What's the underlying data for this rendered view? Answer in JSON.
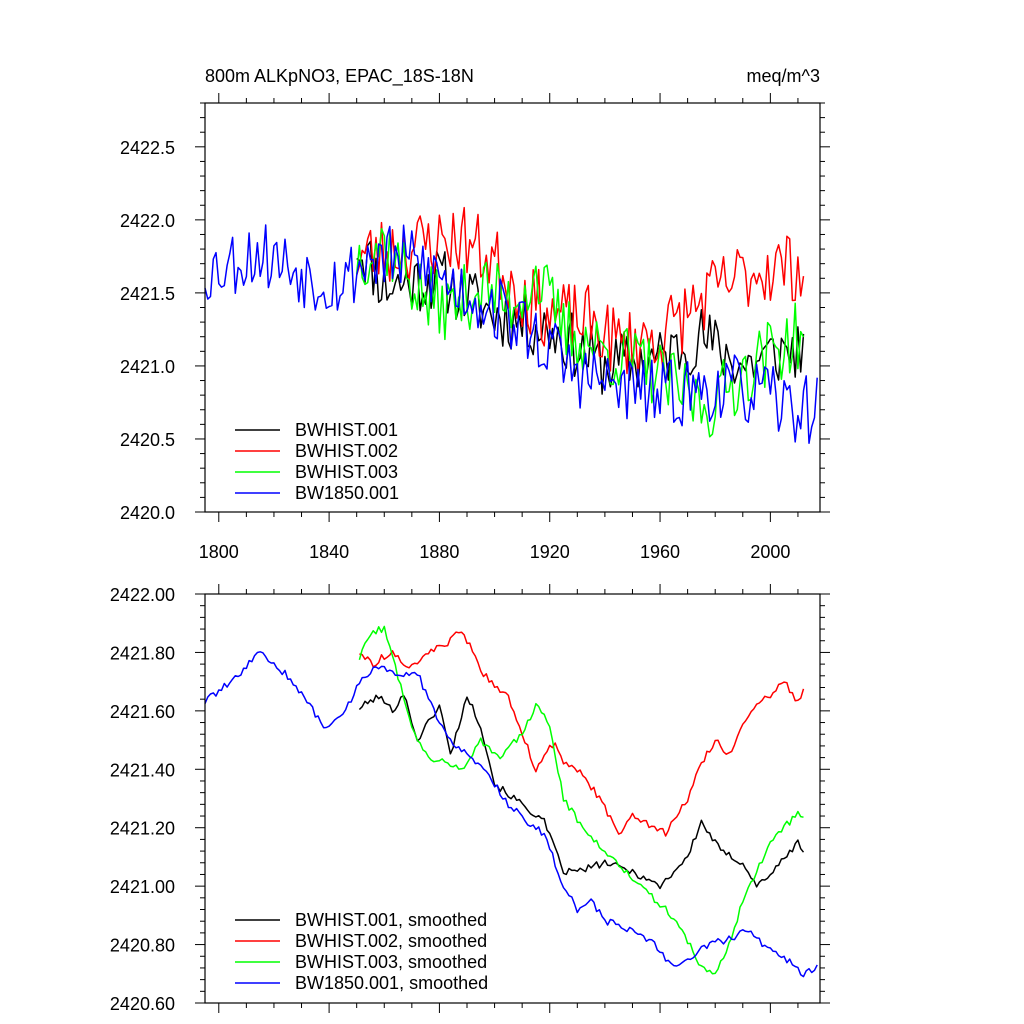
{
  "chart_data": [
    {
      "type": "line",
      "title_left": "800m ALKpNO3, EPAC_18S-18N",
      "title_right": "meq/m^3",
      "xlim": [
        1795,
        2018
      ],
      "ylim": [
        2420.0,
        2422.8
      ],
      "xticks": [
        1800,
        1840,
        1880,
        1920,
        1960,
        2000
      ],
      "xtick_labels": [
        "1800",
        "1840",
        "1880",
        "1920",
        "1960",
        "2000"
      ],
      "yticks": [
        2420.0,
        2420.5,
        2421.0,
        2421.5,
        2422.0,
        2422.5
      ],
      "ytick_labels": [
        "2420.0",
        "2420.5",
        "2421.0",
        "2421.5",
        "2422.0",
        "2422.5"
      ],
      "legend_position": "bottom-left",
      "series": [
        {
          "name": "BWHIST.001",
          "color": "#000000",
          "start": 1850,
          "anchors": [
            [
              1850,
              2421.85
            ],
            [
              1860,
              2421.55
            ],
            [
              1880,
              2421.6
            ],
            [
              1900,
              2421.35
            ],
            [
              1920,
              2421.25
            ],
            [
              1940,
              2421.0
            ],
            [
              1960,
              2421.05
            ],
            [
              1975,
              2421.2
            ],
            [
              1990,
              2421.0
            ],
            [
              2005,
              2421.1
            ],
            [
              2012,
              2421.12
            ]
          ],
          "noise": 0.22,
          "seed": 11
        },
        {
          "name": "BWHIST.002",
          "color": "#ff0000",
          "start": 1850,
          "anchors": [
            [
              1850,
              2421.75
            ],
            [
              1865,
              2421.8
            ],
            [
              1888,
              2421.88
            ],
            [
              1900,
              2421.72
            ],
            [
              1910,
              2421.5
            ],
            [
              1920,
              2421.35
            ],
            [
              1935,
              2421.3
            ],
            [
              1945,
              2421.15
            ],
            [
              1960,
              2421.2
            ],
            [
              1975,
              2421.45
            ],
            [
              1990,
              2421.62
            ],
            [
              2000,
              2421.68
            ],
            [
              2012,
              2421.68
            ]
          ],
          "noise": 0.25,
          "seed": 23
        },
        {
          "name": "BWHIST.003",
          "color": "#00ff00",
          "start": 1850,
          "anchors": [
            [
              1850,
              2421.75
            ],
            [
              1860,
              2421.85
            ],
            [
              1875,
              2421.45
            ],
            [
              1885,
              2421.4
            ],
            [
              1895,
              2421.55
            ],
            [
              1905,
              2421.42
            ],
            [
              1915,
              2421.62
            ],
            [
              1925,
              2421.25
            ],
            [
              1940,
              2421.1
            ],
            [
              1955,
              2421.0
            ],
            [
              1965,
              2420.85
            ],
            [
              1978,
              2420.72
            ],
            [
              1990,
              2420.95
            ],
            [
              2000,
              2421.1
            ],
            [
              2012,
              2421.22
            ]
          ],
          "noise": 0.24,
          "seed": 37
        },
        {
          "name": "BW1850.001",
          "color": "#0000ff",
          "start": 1795,
          "anchors": [
            [
              1795,
              2421.65
            ],
            [
              1815,
              2421.78
            ],
            [
              1835,
              2421.6
            ],
            [
              1845,
              2421.58
            ],
            [
              1855,
              2421.75
            ],
            [
              1870,
              2421.72
            ],
            [
              1885,
              2421.55
            ],
            [
              1900,
              2421.4
            ],
            [
              1915,
              2421.2
            ],
            [
              1930,
              2420.95
            ],
            [
              1945,
              2420.85
            ],
            [
              1960,
              2420.8
            ],
            [
              1980,
              2420.85
            ],
            [
              1995,
              2420.82
            ],
            [
              2005,
              2420.72
            ],
            [
              2017,
              2420.7
            ]
          ],
          "noise": 0.24,
          "seed": 53
        }
      ]
    },
    {
      "type": "line",
      "xlim": [
        1795,
        2018
      ],
      "ylim": [
        2420.6,
        2422.0
      ],
      "xticks": [
        1800,
        1840,
        1880,
        1920,
        1960,
        2000
      ],
      "yticks": [
        2420.6,
        2420.8,
        2421.0,
        2421.2,
        2421.4,
        2421.6,
        2421.8,
        2422.0
      ],
      "ytick_labels": [
        "2420.60",
        "2420.80",
        "2421.00",
        "2421.20",
        "2421.40",
        "2421.60",
        "2421.80",
        "2422.00"
      ],
      "legend_position": "bottom-left",
      "series": [
        {
          "name": "BWHIST.001, smoothed",
          "color": "#000000",
          "start": 1851,
          "anchors": [
            [
              1851,
              2421.61
            ],
            [
              1858,
              2421.65
            ],
            [
              1863,
              2421.6
            ],
            [
              1867,
              2421.66
            ],
            [
              1872,
              2421.5
            ],
            [
              1880,
              2421.62
            ],
            [
              1884,
              2421.45
            ],
            [
              1890,
              2421.65
            ],
            [
              1895,
              2421.55
            ],
            [
              1900,
              2421.35
            ],
            [
              1910,
              2421.28
            ],
            [
              1918,
              2421.22
            ],
            [
              1925,
              2421.05
            ],
            [
              1930,
              2421.05
            ],
            [
              1940,
              2421.08
            ],
            [
              1950,
              2421.05
            ],
            [
              1960,
              2421.0
            ],
            [
              1970,
              2421.1
            ],
            [
              1975,
              2421.22
            ],
            [
              1982,
              2421.12
            ],
            [
              1990,
              2421.08
            ],
            [
              1995,
              2421.0
            ],
            [
              2002,
              2421.06
            ],
            [
              2010,
              2421.15
            ],
            [
              2012,
              2421.12
            ]
          ],
          "noise": 0.012,
          "seed": 101
        },
        {
          "name": "BWHIST.002, smoothed",
          "color": "#ff0000",
          "start": 1851,
          "anchors": [
            [
              1851,
              2421.8
            ],
            [
              1856,
              2421.76
            ],
            [
              1862,
              2421.8
            ],
            [
              1870,
              2421.75
            ],
            [
              1875,
              2421.8
            ],
            [
              1882,
              2421.82
            ],
            [
              1888,
              2421.88
            ],
            [
              1895,
              2421.74
            ],
            [
              1900,
              2421.68
            ],
            [
              1905,
              2421.65
            ],
            [
              1910,
              2421.52
            ],
            [
              1915,
              2421.4
            ],
            [
              1922,
              2421.5
            ],
            [
              1925,
              2421.42
            ],
            [
              1932,
              2421.38
            ],
            [
              1938,
              2421.3
            ],
            [
              1945,
              2421.18
            ],
            [
              1950,
              2421.25
            ],
            [
              1958,
              2421.2
            ],
            [
              1962,
              2421.18
            ],
            [
              1970,
              2421.3
            ],
            [
              1975,
              2421.42
            ],
            [
              1980,
              2421.5
            ],
            [
              1985,
              2421.45
            ],
            [
              1990,
              2421.55
            ],
            [
              1995,
              2421.62
            ],
            [
              2000,
              2421.65
            ],
            [
              2005,
              2421.7
            ],
            [
              2010,
              2421.63
            ],
            [
              2012,
              2421.68
            ]
          ],
          "noise": 0.012,
          "seed": 113
        },
        {
          "name": "BWHIST.003, smoothed",
          "color": "#00ff00",
          "start": 1851,
          "anchors": [
            [
              1851,
              2421.78
            ],
            [
              1855,
              2421.87
            ],
            [
              1860,
              2421.88
            ],
            [
              1865,
              2421.72
            ],
            [
              1870,
              2421.55
            ],
            [
              1875,
              2421.45
            ],
            [
              1882,
              2421.42
            ],
            [
              1888,
              2421.4
            ],
            [
              1895,
              2421.5
            ],
            [
              1902,
              2421.44
            ],
            [
              1910,
              2421.52
            ],
            [
              1915,
              2421.62
            ],
            [
              1920,
              2421.55
            ],
            [
              1925,
              2421.3
            ],
            [
              1932,
              2421.2
            ],
            [
              1940,
              2421.12
            ],
            [
              1948,
              2421.05
            ],
            [
              1955,
              2420.98
            ],
            [
              1962,
              2420.92
            ],
            [
              1968,
              2420.85
            ],
            [
              1975,
              2420.72
            ],
            [
              1980,
              2420.7
            ],
            [
              1985,
              2420.8
            ],
            [
              1990,
              2420.95
            ],
            [
              1995,
              2421.05
            ],
            [
              2000,
              2421.15
            ],
            [
              2005,
              2421.2
            ],
            [
              2010,
              2421.25
            ],
            [
              2012,
              2421.23
            ]
          ],
          "noise": 0.012,
          "seed": 127
        },
        {
          "name": "BW1850.001, smoothed",
          "color": "#0000ff",
          "start": 1795,
          "anchors": [
            [
              1795,
              2421.63
            ],
            [
              1800,
              2421.67
            ],
            [
              1805,
              2421.7
            ],
            [
              1810,
              2421.75
            ],
            [
              1815,
              2421.8
            ],
            [
              1820,
              2421.76
            ],
            [
              1825,
              2421.72
            ],
            [
              1832,
              2421.63
            ],
            [
              1838,
              2421.55
            ],
            [
              1845,
              2421.58
            ],
            [
              1850,
              2421.68
            ],
            [
              1857,
              2421.76
            ],
            [
              1865,
              2421.72
            ],
            [
              1872,
              2421.73
            ],
            [
              1877,
              2421.62
            ],
            [
              1882,
              2421.52
            ],
            [
              1890,
              2421.45
            ],
            [
              1898,
              2421.38
            ],
            [
              1905,
              2421.28
            ],
            [
              1912,
              2421.22
            ],
            [
              1918,
              2421.18
            ],
            [
              1925,
              2421.0
            ],
            [
              1930,
              2420.92
            ],
            [
              1935,
              2420.95
            ],
            [
              1940,
              2420.88
            ],
            [
              1950,
              2420.85
            ],
            [
              1958,
              2420.8
            ],
            [
              1965,
              2420.72
            ],
            [
              1970,
              2420.75
            ],
            [
              1978,
              2420.8
            ],
            [
              1985,
              2420.82
            ],
            [
              1992,
              2420.85
            ],
            [
              1997,
              2420.8
            ],
            [
              2002,
              2420.78
            ],
            [
              2008,
              2420.73
            ],
            [
              2012,
              2420.7
            ],
            [
              2017,
              2420.72
            ]
          ],
          "noise": 0.012,
          "seed": 139
        }
      ]
    }
  ]
}
